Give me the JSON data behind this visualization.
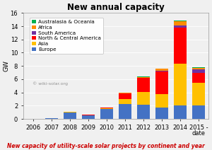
{
  "title": "New annual capacity",
  "ylabel": "GW",
  "subtitle": "New capacity of utility-scale solar projects by continent and year",
  "watermark": "© wiki-solar.org",
  "years": [
    "2006",
    "2007",
    "2008",
    "2009",
    "2010",
    "2011",
    "2012",
    "2013",
    "2014",
    "2015 -\ndate"
  ],
  "categories": [
    "Europe",
    "Asia",
    "North & Central America",
    "South America",
    "Africa",
    "Australasia & Oceania"
  ],
  "colors": [
    "#4472c4",
    "#ffc000",
    "#ff0000",
    "#7030a0",
    "#ff8c00",
    "#00b050"
  ],
  "data": {
    "Europe": [
      0.05,
      0.15,
      1.0,
      0.5,
      1.5,
      2.2,
      2.1,
      1.7,
      2.0,
      2.0
    ],
    "Asia": [
      0.0,
      0.0,
      0.05,
      0.05,
      0.15,
      0.8,
      2.0,
      2.0,
      6.3,
      3.5
    ],
    "North & Central America": [
      0.0,
      0.0,
      0.0,
      0.1,
      0.1,
      0.9,
      2.1,
      3.5,
      5.5,
      1.5
    ],
    "South America": [
      0.0,
      0.0,
      0.0,
      0.0,
      0.0,
      0.0,
      0.05,
      0.05,
      0.3,
      0.5
    ],
    "Africa": [
      0.0,
      0.0,
      0.0,
      0.0,
      0.0,
      0.05,
      0.1,
      0.3,
      0.7,
      0.2
    ],
    "Australasia & Oceania": [
      0.0,
      0.0,
      0.0,
      0.0,
      0.0,
      0.0,
      0.05,
      0.05,
      0.1,
      0.1
    ]
  },
  "ylim": [
    0,
    16
  ],
  "yticks": [
    0,
    2,
    4,
    6,
    8,
    10,
    12,
    14,
    16
  ],
  "background_color": "#f0f0f0",
  "title_fontsize": 8.5,
  "axis_fontsize": 6,
  "legend_fontsize": 5.2,
  "subtitle_fontsize": 5.5,
  "subtitle_color": "#cc0000",
  "bar_width": 0.7
}
